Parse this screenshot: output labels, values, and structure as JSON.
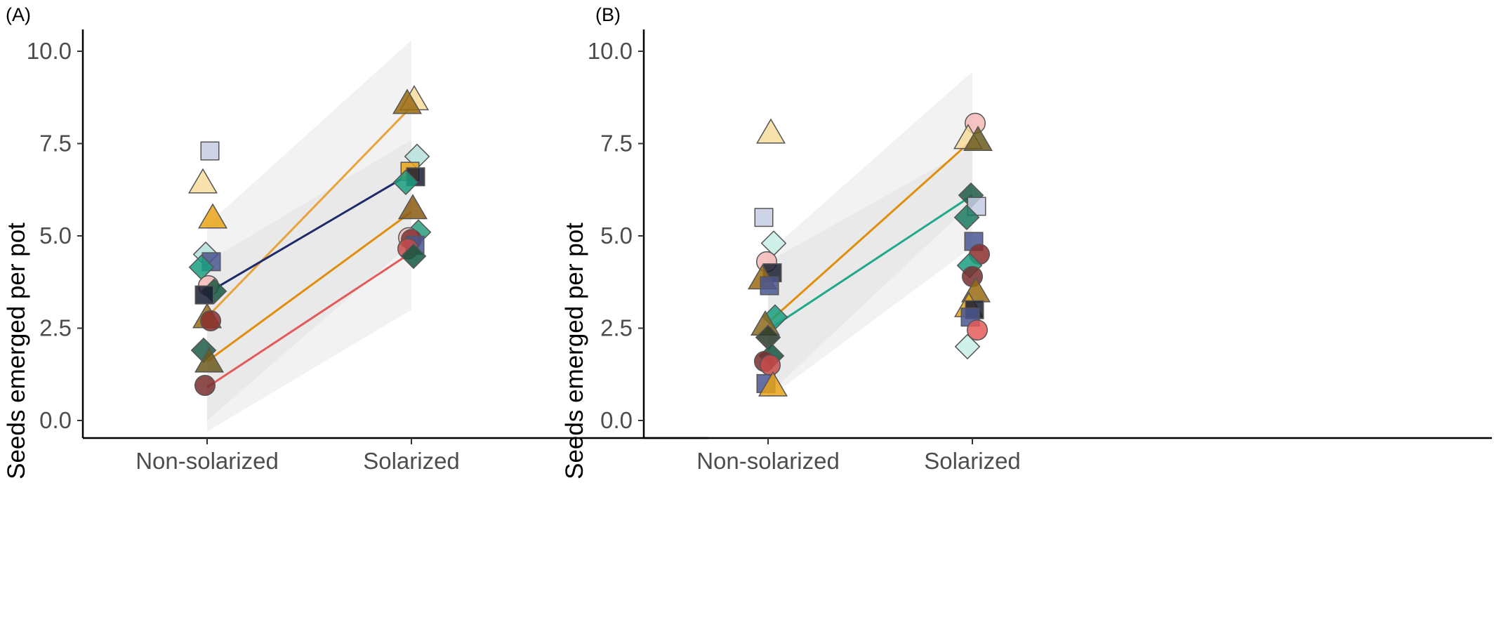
{
  "chart_data": [
    {
      "type": "scatter",
      "panel_label": "(A)",
      "ylabel": "Seeds emerged per pot",
      "xlabel": "",
      "categories": [
        "Non-solarized",
        "Solarized"
      ],
      "ylim": [
        -0.3,
        10.5
      ],
      "yticks": [
        "0.0",
        "2.5",
        "5.0",
        "7.5",
        "10.0"
      ],
      "grid": false,
      "regression_lines": [
        {
          "color": "#e8a33a",
          "values": [
            2.8,
            8.5
          ]
        },
        {
          "color": "#1f2a6b",
          "values": [
            3.45,
            6.7
          ]
        },
        {
          "color": "#e08e0b",
          "values": [
            1.6,
            5.65
          ]
        },
        {
          "color": "#e35a5a",
          "values": [
            0.9,
            4.55
          ]
        }
      ],
      "confidence_bands": [
        {
          "lower": [
            0.0,
            4.8
          ],
          "upper": [
            5.3,
            10.3
          ]
        },
        {
          "lower": [
            -0.3,
            3.0
          ],
          "upper": [
            4.3,
            7.6
          ]
        }
      ],
      "points": [
        {
          "x": "Non-solarized",
          "y": 7.3,
          "shape": "square",
          "color": "#c5cbe0"
        },
        {
          "x": "Non-solarized",
          "y": 6.45,
          "shape": "triangle",
          "color": "#f7dc9b"
        },
        {
          "x": "Non-solarized",
          "y": 5.5,
          "shape": "triangle",
          "color": "#e8a317"
        },
        {
          "x": "Non-solarized",
          "y": 4.5,
          "shape": "diamond",
          "color": "#b5e0dc"
        },
        {
          "x": "Non-solarized",
          "y": 4.3,
          "shape": "square",
          "color": "#4a5690"
        },
        {
          "x": "Non-solarized",
          "y": 4.15,
          "shape": "diamond",
          "color": "#1a9e80"
        },
        {
          "x": "Non-solarized",
          "y": 3.65,
          "shape": "circle",
          "color": "#f4b8b8"
        },
        {
          "x": "Non-solarized",
          "y": 3.5,
          "shape": "diamond",
          "color": "#14573f"
        },
        {
          "x": "Non-solarized",
          "y": 3.4,
          "shape": "square",
          "color": "#1a1e33"
        },
        {
          "x": "Non-solarized",
          "y": 2.8,
          "shape": "triangle",
          "color": "#9a6b12"
        },
        {
          "x": "Non-solarized",
          "y": 2.7,
          "shape": "circle",
          "color": "#8b2e2e"
        },
        {
          "x": "Non-solarized",
          "y": 1.9,
          "shape": "diamond",
          "color": "#1e5b47"
        },
        {
          "x": "Non-solarized",
          "y": 1.6,
          "shape": "triangle",
          "color": "#6b5a1e"
        },
        {
          "x": "Non-solarized",
          "y": 0.95,
          "shape": "circle",
          "color": "#7a2e2e"
        },
        {
          "x": "Solarized",
          "y": 8.7,
          "shape": "triangle",
          "color": "#f7dc9b"
        },
        {
          "x": "Solarized",
          "y": 8.6,
          "shape": "triangle",
          "color": "#9a6b12"
        },
        {
          "x": "Solarized",
          "y": 7.15,
          "shape": "diamond",
          "color": "#b5e0dc"
        },
        {
          "x": "Solarized",
          "y": 6.75,
          "shape": "square",
          "color": "#e8a317"
        },
        {
          "x": "Solarized",
          "y": 6.6,
          "shape": "square",
          "color": "#1a1e33"
        },
        {
          "x": "Solarized",
          "y": 6.45,
          "shape": "diamond",
          "color": "#1a9e80"
        },
        {
          "x": "Solarized",
          "y": 5.75,
          "shape": "triangle",
          "color": "#8a5a12"
        },
        {
          "x": "Solarized",
          "y": 5.1,
          "shape": "diamond",
          "color": "#2a9e80"
        },
        {
          "x": "Solarized",
          "y": 4.95,
          "shape": "circle",
          "color": "#f4b8b8"
        },
        {
          "x": "Solarized",
          "y": 4.9,
          "shape": "circle",
          "color": "#8b2e2e"
        },
        {
          "x": "Solarized",
          "y": 4.75,
          "shape": "square",
          "color": "#4a5690"
        },
        {
          "x": "Solarized",
          "y": 4.65,
          "shape": "circle",
          "color": "#c84a4a"
        },
        {
          "x": "Solarized",
          "y": 4.45,
          "shape": "diamond",
          "color": "#14573f"
        }
      ]
    },
    {
      "type": "scatter",
      "panel_label": "(B)",
      "ylabel": "Seeds emerged per pot",
      "xlabel": "",
      "categories": [
        "Non-solarized",
        "Solarized"
      ],
      "ylim": [
        -0.3,
        10.5
      ],
      "yticks": [
        "0.0",
        "2.5",
        "5.0",
        "7.5",
        "10.0"
      ],
      "grid": false,
      "regression_lines": [
        {
          "color": "#e08e0b",
          "values": [
            2.65,
            7.6
          ]
        },
        {
          "color": "#1fa88a",
          "values": [
            2.45,
            6.1
          ]
        }
      ],
      "confidence_bands": [
        {
          "lower": [
            0.7,
            5.9
          ],
          "upper": [
            4.55,
            9.45
          ]
        },
        {
          "lower": [
            0.6,
            4.7
          ],
          "upper": [
            4.3,
            7.4
          ]
        }
      ],
      "points": [
        {
          "x": "Non-solarized",
          "y": 7.8,
          "shape": "triangle",
          "color": "#f7dc9b"
        },
        {
          "x": "Non-solarized",
          "y": 5.5,
          "shape": "square",
          "color": "#c5cbe0"
        },
        {
          "x": "Non-solarized",
          "y": 4.8,
          "shape": "diamond",
          "color": "#c8ede6"
        },
        {
          "x": "Non-solarized",
          "y": 4.3,
          "shape": "circle",
          "color": "#f4b8b8"
        },
        {
          "x": "Non-solarized",
          "y": 4.0,
          "shape": "square",
          "color": "#1a1e33"
        },
        {
          "x": "Non-solarized",
          "y": 3.85,
          "shape": "triangle",
          "color": "#9a6b12"
        },
        {
          "x": "Non-solarized",
          "y": 3.65,
          "shape": "square",
          "color": "#4a5690"
        },
        {
          "x": "Non-solarized",
          "y": 2.8,
          "shape": "diamond",
          "color": "#1a9e80"
        },
        {
          "x": "Non-solarized",
          "y": 2.6,
          "shape": "triangle",
          "color": "#8a6a1e"
        },
        {
          "x": "Non-solarized",
          "y": 2.25,
          "shape": "diamond",
          "color": "#2a3a2a"
        },
        {
          "x": "Non-solarized",
          "y": 1.75,
          "shape": "diamond",
          "color": "#14573f"
        },
        {
          "x": "Non-solarized",
          "y": 1.6,
          "shape": "circle",
          "color": "#7a2e2e"
        },
        {
          "x": "Non-solarized",
          "y": 1.5,
          "shape": "circle",
          "color": "#c84a4a"
        },
        {
          "x": "Non-solarized",
          "y": 1.0,
          "shape": "square",
          "color": "#4a5690"
        },
        {
          "x": "Non-solarized",
          "y": 0.95,
          "shape": "triangle",
          "color": "#e8a317"
        },
        {
          "x": "Solarized",
          "y": 8.05,
          "shape": "circle",
          "color": "#f4b8b8"
        },
        {
          "x": "Solarized",
          "y": 7.65,
          "shape": "triangle",
          "color": "#f7dc9b"
        },
        {
          "x": "Solarized",
          "y": 7.6,
          "shape": "triangle",
          "color": "#6b5a1e"
        },
        {
          "x": "Solarized",
          "y": 6.1,
          "shape": "diamond",
          "color": "#1e5b47"
        },
        {
          "x": "Solarized",
          "y": 5.8,
          "shape": "square",
          "color": "#c5cbe0"
        },
        {
          "x": "Solarized",
          "y": 5.5,
          "shape": "diamond",
          "color": "#1a7a60"
        },
        {
          "x": "Solarized",
          "y": 4.85,
          "shape": "square",
          "color": "#4a5690"
        },
        {
          "x": "Solarized",
          "y": 4.5,
          "shape": "circle",
          "color": "#8b2e2e"
        },
        {
          "x": "Solarized",
          "y": 4.2,
          "shape": "diamond",
          "color": "#1a9e80"
        },
        {
          "x": "Solarized",
          "y": 3.9,
          "shape": "circle",
          "color": "#7a2e2e"
        },
        {
          "x": "Solarized",
          "y": 3.5,
          "shape": "triangle",
          "color": "#9a6b12"
        },
        {
          "x": "Solarized",
          "y": 3.1,
          "shape": "triangle",
          "color": "#e8a317"
        },
        {
          "x": "Solarized",
          "y": 3.0,
          "shape": "square",
          "color": "#1a1e33"
        },
        {
          "x": "Solarized",
          "y": 2.8,
          "shape": "square",
          "color": "#4a5690"
        },
        {
          "x": "Solarized",
          "y": 2.45,
          "shape": "circle",
          "color": "#e35a5a"
        },
        {
          "x": "Solarized",
          "y": 2.0,
          "shape": "diamond",
          "color": "#c8ede6"
        }
      ]
    }
  ]
}
